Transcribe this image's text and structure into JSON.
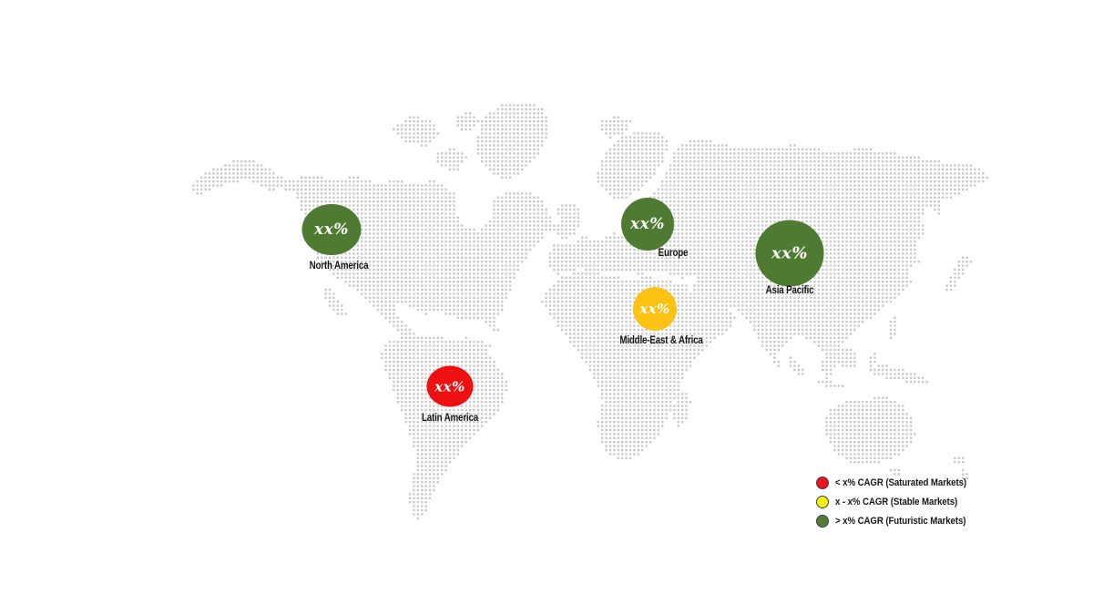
{
  "map": {
    "dot_color": "#c9c9c9",
    "regions": [
      {
        "name": "North America",
        "value": "xx%",
        "color": "#4e7a31"
      },
      {
        "name": "Europe",
        "value": "xx%",
        "color": "#4e7a31"
      },
      {
        "name": "Asia Pacific",
        "value": "xx%",
        "color": "#4e7a31"
      },
      {
        "name": "Middle-East & Africa",
        "value": "xx%",
        "color": "#fbc213"
      },
      {
        "name": "Latin America",
        "value": "xx%",
        "color": "#ee1112"
      }
    ],
    "legend": {
      "items": [
        {
          "label": "< x% CAGR (Saturated Markets)",
          "color": "#e91420"
        },
        {
          "label": "x - x% CAGR (Stable Markets)",
          "color": "#f7f112"
        },
        {
          "label": "> x% CAGR (Futuristic Markets)",
          "color": "#567a38"
        }
      ]
    }
  }
}
